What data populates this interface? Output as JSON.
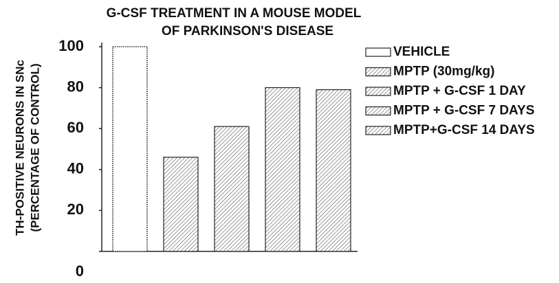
{
  "chart_data": {
    "type": "bar",
    "title": [
      "G-CSF TREATMENT IN A MOUSE MODEL",
      "OF PARKINSON'S DISEASE"
    ],
    "y_label": [
      "TH-POSITIVE NEURONS IN SNc",
      "(PERCENTAGE OF CONTROL)"
    ],
    "series": [
      {
        "name": "VEHICLE",
        "color": "#ffffff",
        "hatch": false,
        "values": [
          100
        ]
      },
      {
        "name": "MPTP (30mg/kg)",
        "color": "#ffffff",
        "hatch": true,
        "values": [
          46
        ]
      },
      {
        "name": "MPTP + G-CSF 1 DAY",
        "color": "#ffffff",
        "hatch": true,
        "values": [
          61
        ]
      },
      {
        "name": "MPTP + G-CSF 7 DAYS",
        "color": "#ffffff",
        "hatch": true,
        "values": [
          80
        ]
      },
      {
        "name": "MPTP+G-CSF 14 DAYS",
        "color": "#ffffff",
        "hatch": true,
        "values": [
          79
        ]
      }
    ],
    "ylim": [
      0,
      102
    ],
    "yticks": [
      0,
      20,
      40,
      60,
      80,
      100
    ],
    "grid": false
  }
}
